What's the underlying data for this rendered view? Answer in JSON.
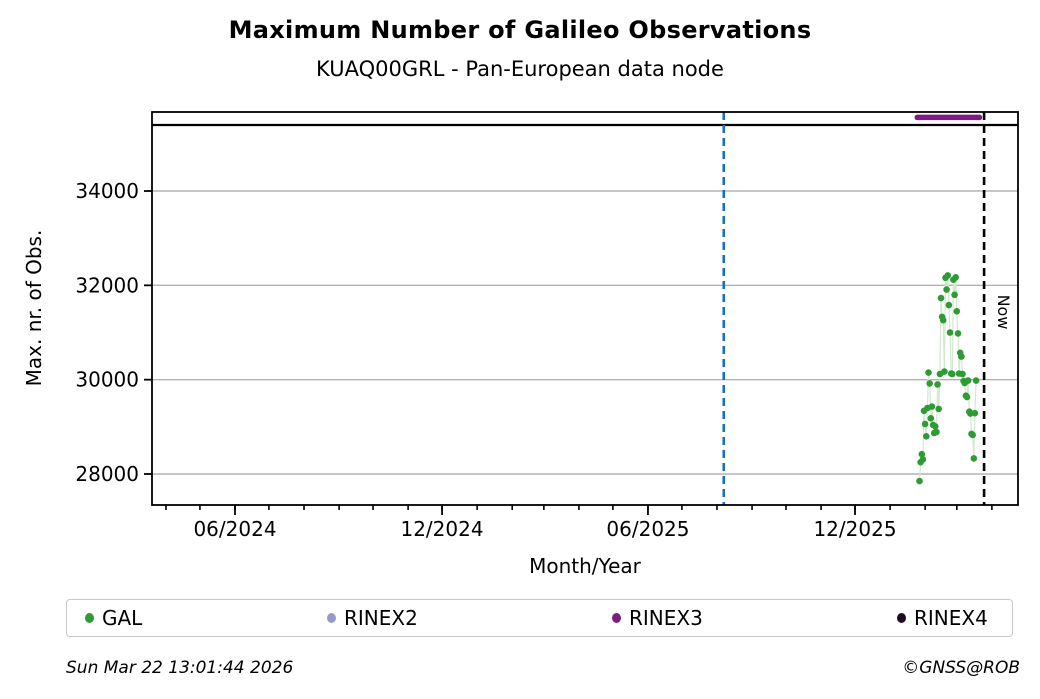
{
  "title": "Maximum Number of Galileo Observations",
  "subtitle": "KUAQ00GRL - Pan-European data node",
  "footer": {
    "timestamp": "Sun Mar 22 13:01:44 2026",
    "credit": "©GNSS@ROB"
  },
  "legend": [
    {
      "label": "GAL",
      "color": "#2e9b35"
    },
    {
      "label": "RINEX2",
      "color": "#9a99cb"
    },
    {
      "label": "RINEX3",
      "color": "#7c1d7f"
    },
    {
      "label": "RINEX4",
      "color": "#200a22"
    }
  ],
  "chart_data": {
    "type": "scatter",
    "title": "Maximum Number of Galileo Observations",
    "subtitle": "KUAQ00GRL - Pan-European data node",
    "xlabel": "Month/Year",
    "ylabel": "Max. nr. of Obs.",
    "grid": "horizontal, major y ticks, light gray",
    "legend_position": "bottom box",
    "x_tick_labels": [
      "06/2024",
      "12/2024",
      "06/2025",
      "12/2025"
    ],
    "x_tick_dates": [
      "2024-06-01",
      "2024-12-01",
      "2025-06-01",
      "2025-12-01"
    ],
    "x_minor_ticks": "monthly",
    "xlim": [
      "2024-03-20",
      "2026-04-24"
    ],
    "y_ticks": [
      28000,
      30000,
      32000,
      34000
    ],
    "ylim": [
      27340,
      35675
    ],
    "annotations": {
      "event_line": {
        "date": "2025-08-07",
        "style": "dashed",
        "color": "#1a6fc0"
      },
      "now_line": {
        "date": "2026-03-22",
        "label": "Now",
        "style": "dashed",
        "color": "#000000"
      },
      "max_line": {
        "value": 35400,
        "color": "#000000"
      },
      "rinex3_segment": {
        "name": "RINEX3",
        "start": "2026-01-25",
        "end": "2026-03-21",
        "value": 35560,
        "color": "#7c1d7f"
      }
    },
    "series": [
      {
        "name": "GAL",
        "color": "#2e9b35",
        "connector_color": "#d2e9cf",
        "points": [
          [
            "2026-01-27",
            27850
          ],
          [
            "2026-01-28",
            28250
          ],
          [
            "2026-01-29",
            28420
          ],
          [
            "2026-01-30",
            28310
          ],
          [
            "2026-01-31",
            29340
          ],
          [
            "2026-02-01",
            29060
          ],
          [
            "2026-02-02",
            28800
          ],
          [
            "2026-02-03",
            29400
          ],
          [
            "2026-02-04",
            30150
          ],
          [
            "2026-02-05",
            29920
          ],
          [
            "2026-02-06",
            29180
          ],
          [
            "2026-02-07",
            29430
          ],
          [
            "2026-02-08",
            29040
          ],
          [
            "2026-02-09",
            28870
          ],
          [
            "2026-02-10",
            29010
          ],
          [
            "2026-02-11",
            28890
          ],
          [
            "2026-02-12",
            29900
          ],
          [
            "2026-02-13",
            29380
          ],
          [
            "2026-02-14",
            30120
          ],
          [
            "2026-02-15",
            31730
          ],
          [
            "2026-02-16",
            31330
          ],
          [
            "2026-02-17",
            31260
          ],
          [
            "2026-02-18",
            30170
          ],
          [
            "2026-02-19",
            32160
          ],
          [
            "2026-02-20",
            31910
          ],
          [
            "2026-02-21",
            32210
          ],
          [
            "2026-02-22",
            31580
          ],
          [
            "2026-02-23",
            31000
          ],
          [
            "2026-02-24",
            30130
          ],
          [
            "2026-02-25",
            30120
          ],
          [
            "2026-02-26",
            32120
          ],
          [
            "2026-02-27",
            31800
          ],
          [
            "2026-02-28",
            32170
          ],
          [
            "2026-03-01",
            31450
          ],
          [
            "2026-03-02",
            30980
          ],
          [
            "2026-03-03",
            30130
          ],
          [
            "2026-03-04",
            30570
          ],
          [
            "2026-03-05",
            30490
          ],
          [
            "2026-03-06",
            30120
          ],
          [
            "2026-03-07",
            29970
          ],
          [
            "2026-03-08",
            29930
          ],
          [
            "2026-03-09",
            29660
          ],
          [
            "2026-03-10",
            29630
          ],
          [
            "2026-03-11",
            29980
          ],
          [
            "2026-03-12",
            29320
          ],
          [
            "2026-03-13",
            29280
          ],
          [
            "2026-03-14",
            28850
          ],
          [
            "2026-03-15",
            28830
          ],
          [
            "2026-03-16",
            28330
          ],
          [
            "2026-03-17",
            29290
          ],
          [
            "2026-03-18",
            29980
          ]
        ]
      }
    ]
  }
}
